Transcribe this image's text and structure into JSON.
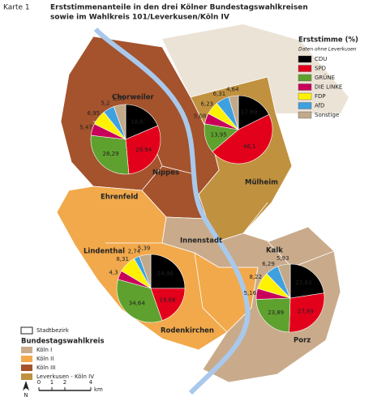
{
  "header": {
    "label": "Karte 1",
    "title": [
      "Erststimmenanteile in den drei Kölner Bundestagswahlkreisen",
      "sowie im Wahlkreis 101/Leverkusen/Köln IV"
    ]
  },
  "legend": {
    "title": "Erststimme (%)",
    "subtitle": "Daten ohne Leverkusen",
    "parties": [
      {
        "name": "CDU",
        "color": "#000000"
      },
      {
        "name": "SPD",
        "color": "#e3001b"
      },
      {
        "name": "GRÜNE",
        "color": "#5fa12e"
      },
      {
        "name": "DIE LINKE",
        "color": "#c8005a"
      },
      {
        "name": "FDP",
        "color": "#fff200"
      },
      {
        "name": "AfD",
        "color": "#3fa0e0"
      },
      {
        "name": "Sonstige",
        "color": "#c2a98a"
      }
    ]
  },
  "districts": [
    "Chorweiler",
    "Nippes",
    "Ehrenfeld",
    "Mülheim",
    "Lindenthal",
    "Innenstadt",
    "Kalk",
    "Rodenkirchen",
    "Porz"
  ],
  "pies": [
    {
      "values": [
        18.6,
        29.94,
        28.29,
        5.47,
        6.95,
        5.2,
        5.55
      ],
      "value_labels": [
        "18,6",
        "29,94",
        "28,29",
        "5,47",
        "6,95",
        "5,2",
        "5,55"
      ]
    },
    {
      "values": [
        17.69,
        46.1,
        13.95,
        5.08,
        6.23,
        6.31,
        4.64
      ],
      "value_labels": [
        "17,69",
        "46,1",
        "13,95",
        "5,08",
        "6,23",
        "6,31",
        "4,64"
      ]
    },
    {
      "values": [
        24.96,
        19.66,
        34.64,
        4.3,
        8.31,
        2.74,
        5.39
      ],
      "value_labels": [
        "24,96",
        "19,66",
        "34,64",
        "4,3",
        "8,31",
        "2,74",
        "5,39"
      ]
    },
    {
      "values": [
        22.63,
        27.89,
        23.89,
        5.16,
        8.22,
        6.29,
        5.93
      ],
      "value_labels": [
        "22,63",
        "27,89",
        "23,89",
        "5,16",
        "8,22",
        "6,29",
        "5,93"
      ]
    }
  ],
  "map_legend": {
    "border_label": "Stadtbezirk",
    "title": "Bundestagswahlkreis",
    "items": [
      {
        "name": "Köln I",
        "color": "#c9ab8c"
      },
      {
        "name": "Köln II",
        "color": "#f2a94b"
      },
      {
        "name": "Köln III",
        "color": "#a4532c"
      },
      {
        "name": "Leverkusen - Köln IV",
        "color": "#c0913f"
      }
    ]
  },
  "scale": {
    "ticks": [
      0,
      1,
      2,
      4
    ],
    "unit": "km",
    "north": "N"
  }
}
